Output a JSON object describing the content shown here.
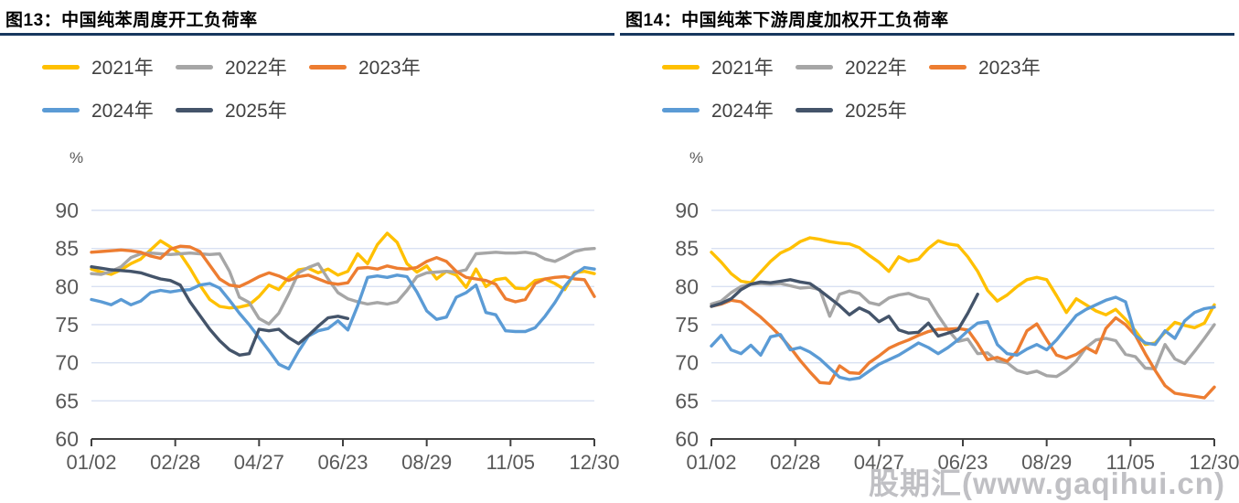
{
  "watermark": "股期汇(www.gaqihui.cn)",
  "unit": "%",
  "colors": {
    "title_underline": "#17375e",
    "gridline": "#d9e1f2",
    "axis_line": "#404040",
    "tick_text": "#595959",
    "y2021": "#FFC000",
    "y2022": "#A6A6A6",
    "y2023": "#ED7D31",
    "y2024": "#5B9BD5",
    "y2025": "#44546A"
  },
  "legend": [
    {
      "label": "2021年",
      "color": "#FFC000"
    },
    {
      "label": "2022年",
      "color": "#A6A6A6"
    },
    {
      "label": "2023年",
      "color": "#ED7D31"
    },
    {
      "label": "2024年",
      "color": "#5B9BD5"
    },
    {
      "label": "2025年",
      "color": "#44546A"
    }
  ],
  "chart_data": [
    {
      "type": "line",
      "title": "图13：中国纯苯周度开工负荷率",
      "ylabel": "%",
      "ylim": [
        60,
        90
      ],
      "y_ticks": [
        90,
        85,
        80,
        75,
        70,
        65,
        60
      ],
      "x_tick_labels": [
        "01/02",
        "02/28",
        "04/27",
        "06/23",
        "08/29",
        "11/05",
        "12/30"
      ],
      "grid": "horizontal",
      "legend_position": "top-left",
      "series": [
        {
          "name": "2021年",
          "color": "#FFC000",
          "values": [
            82.3,
            81.9,
            81.6,
            82.2,
            83.0,
            83.6,
            84.8,
            86.0,
            85.2,
            84.3,
            82.4,
            80.2,
            78.3,
            77.4,
            77.2,
            77.3,
            77.6,
            78.7,
            80.2,
            79.6,
            81.2,
            82.2,
            82.4,
            81.8,
            82.3,
            81.5,
            82.0,
            84.3,
            83.0,
            85.5,
            87.0,
            85.8,
            83.0,
            81.9,
            82.7,
            81.0,
            82.0,
            81.5,
            79.9,
            82.3,
            80.0,
            80.9,
            81.1,
            79.8,
            79.7,
            80.8,
            81.0,
            80.4,
            79.6,
            81.8,
            82.0,
            81.7
          ]
        },
        {
          "name": "2022年",
          "color": "#A6A6A6",
          "values": [
            81.7,
            81.6,
            82.0,
            82.6,
            83.8,
            84.3,
            84.4,
            84.3,
            84.2,
            84.3,
            84.4,
            84.3,
            84.2,
            84.3,
            82.0,
            78.6,
            77.9,
            75.8,
            75.1,
            76.5,
            79.0,
            81.8,
            82.5,
            83.0,
            81.0,
            79.2,
            78.4,
            78.0,
            77.7,
            77.9,
            77.7,
            78.0,
            79.5,
            81.3,
            81.8,
            81.9,
            82.0,
            81.9,
            82.2,
            84.3,
            84.4,
            84.5,
            84.4,
            84.4,
            84.5,
            84.3,
            83.6,
            83.3,
            83.9,
            84.6,
            84.9,
            85.0
          ]
        },
        {
          "name": "2023年",
          "color": "#ED7D31",
          "values": [
            84.5,
            84.6,
            84.7,
            84.8,
            84.7,
            84.5,
            84.0,
            83.7,
            84.9,
            85.3,
            85.2,
            84.6,
            82.8,
            81.0,
            80.2,
            80.0,
            80.6,
            81.3,
            81.8,
            81.4,
            80.8,
            81.3,
            81.5,
            81.0,
            80.5,
            80.3,
            80.5,
            82.4,
            82.5,
            82.3,
            82.7,
            82.4,
            82.3,
            82.5,
            83.3,
            83.8,
            83.3,
            82.0,
            81.2,
            81.0,
            80.8,
            80.3,
            78.4,
            78.0,
            78.3,
            80.4,
            81.0,
            81.2,
            81.3,
            81.0,
            80.9,
            78.7
          ]
        },
        {
          "name": "2024年",
          "color": "#5B9BD5",
          "values": [
            78.3,
            78.0,
            77.6,
            78.3,
            77.6,
            78.1,
            79.2,
            79.5,
            79.3,
            79.5,
            79.6,
            80.2,
            80.4,
            79.8,
            78.2,
            76.5,
            75.0,
            73.3,
            71.6,
            69.8,
            69.2,
            71.5,
            73.5,
            74.2,
            74.5,
            75.5,
            74.3,
            77.5,
            81.2,
            81.4,
            81.2,
            81.5,
            81.3,
            79.3,
            76.8,
            75.7,
            76.0,
            78.6,
            79.2,
            80.2,
            76.6,
            76.3,
            74.2,
            74.1,
            74.1,
            74.6,
            76.1,
            77.9,
            80.0,
            81.6,
            82.5,
            82.3
          ]
        },
        {
          "name": "2025年",
          "color": "#44546A",
          "values": [
            82.6,
            82.4,
            82.2,
            82.1,
            82.0,
            81.8,
            81.4,
            81.0,
            80.8,
            80.2,
            78.0,
            76.2,
            74.4,
            72.9,
            71.7,
            71.0,
            71.2,
            74.4,
            74.2,
            74.4,
            73.3,
            72.5,
            73.6,
            74.8,
            75.9,
            76.1,
            75.8
          ]
        }
      ]
    },
    {
      "type": "line",
      "title": "图14：中国纯苯下游周度加权开工负荷率",
      "ylabel": "%",
      "ylim": [
        60,
        90
      ],
      "y_ticks": [
        90,
        85,
        80,
        75,
        70,
        65,
        60
      ],
      "x_tick_labels": [
        "01/02",
        "02/28",
        "04/27",
        "06/23",
        "08/29",
        "11/05",
        "12/30"
      ],
      "grid": "horizontal",
      "legend_position": "top-left",
      "series": [
        {
          "name": "2021年",
          "color": "#FFC000",
          "values": [
            84.5,
            83.2,
            81.7,
            80.7,
            80.5,
            81.9,
            83.3,
            84.4,
            85.0,
            85.9,
            86.4,
            86.2,
            85.9,
            85.7,
            85.6,
            85.1,
            84.1,
            83.2,
            82.0,
            83.9,
            83.3,
            83.6,
            85.0,
            86.0,
            85.6,
            85.4,
            83.9,
            82.0,
            79.5,
            78.1,
            78.9,
            80.0,
            80.9,
            81.2,
            80.9,
            78.8,
            76.6,
            78.4,
            77.6,
            76.8,
            76.3,
            77.0,
            75.7,
            74.2,
            72.4,
            72.6,
            74.0,
            75.3,
            74.9,
            74.6,
            75.2,
            77.6
          ]
        },
        {
          "name": "2022年",
          "color": "#A6A6A6",
          "values": [
            77.7,
            78.1,
            79.2,
            80.0,
            80.3,
            80.4,
            80.3,
            80.4,
            80.1,
            79.8,
            79.9,
            79.6,
            76.1,
            79.0,
            79.4,
            79.1,
            77.9,
            77.6,
            78.5,
            78.9,
            79.1,
            78.6,
            78.3,
            76.2,
            74.3,
            72.8,
            73.1,
            71.2,
            71.3,
            70.2,
            70.0,
            69.0,
            68.6,
            68.9,
            68.3,
            68.2,
            69.0,
            70.2,
            72.0,
            73.0,
            73.2,
            72.9,
            71.1,
            70.8,
            69.3,
            69.2,
            72.4,
            70.5,
            69.9,
            71.5,
            73.2,
            75.0
          ]
        },
        {
          "name": "2023年",
          "color": "#ED7D31",
          "values": [
            77.4,
            77.7,
            78.2,
            78.0,
            77.0,
            76.0,
            74.8,
            73.5,
            72.0,
            70.3,
            68.8,
            67.4,
            67.3,
            69.6,
            68.7,
            68.6,
            70.0,
            70.9,
            71.9,
            72.5,
            73.0,
            73.6,
            74.1,
            74.4,
            74.4,
            74.5,
            74.3,
            72.5,
            70.4,
            70.7,
            70.2,
            71.5,
            74.2,
            75.1,
            73.0,
            71.0,
            70.6,
            71.1,
            72.0,
            71.3,
            74.5,
            75.9,
            75.0,
            73.6,
            71.2,
            69.0,
            67.0,
            66.0,
            65.8,
            65.6,
            65.4,
            66.8
          ]
        },
        {
          "name": "2024年",
          "color": "#5B9BD5",
          "values": [
            72.2,
            73.6,
            71.7,
            71.2,
            72.3,
            71.0,
            73.4,
            73.7,
            71.7,
            72.0,
            71.4,
            70.5,
            69.3,
            68.1,
            67.8,
            68.0,
            68.9,
            69.8,
            70.4,
            71.0,
            71.8,
            72.6,
            72.0,
            71.2,
            72.0,
            73.0,
            74.2,
            75.2,
            75.4,
            72.4,
            71.2,
            71.0,
            71.8,
            72.4,
            71.7,
            73.0,
            74.6,
            76.2,
            77.0,
            77.6,
            78.2,
            78.6,
            78.0,
            73.6,
            72.6,
            72.4,
            74.2,
            73.2,
            75.5,
            76.6,
            77.1,
            77.3
          ]
        },
        {
          "name": "2025年",
          "color": "#44546A",
          "values": [
            77.4,
            77.8,
            78.4,
            79.6,
            80.3,
            80.6,
            80.5,
            80.7,
            80.9,
            80.6,
            80.4,
            79.5,
            78.5,
            77.5,
            76.3,
            77.2,
            76.6,
            75.4,
            76.1,
            74.3,
            73.9,
            74.0,
            75.2,
            73.5,
            73.9,
            74.3,
            76.5,
            79.0
          ]
        }
      ]
    }
  ]
}
